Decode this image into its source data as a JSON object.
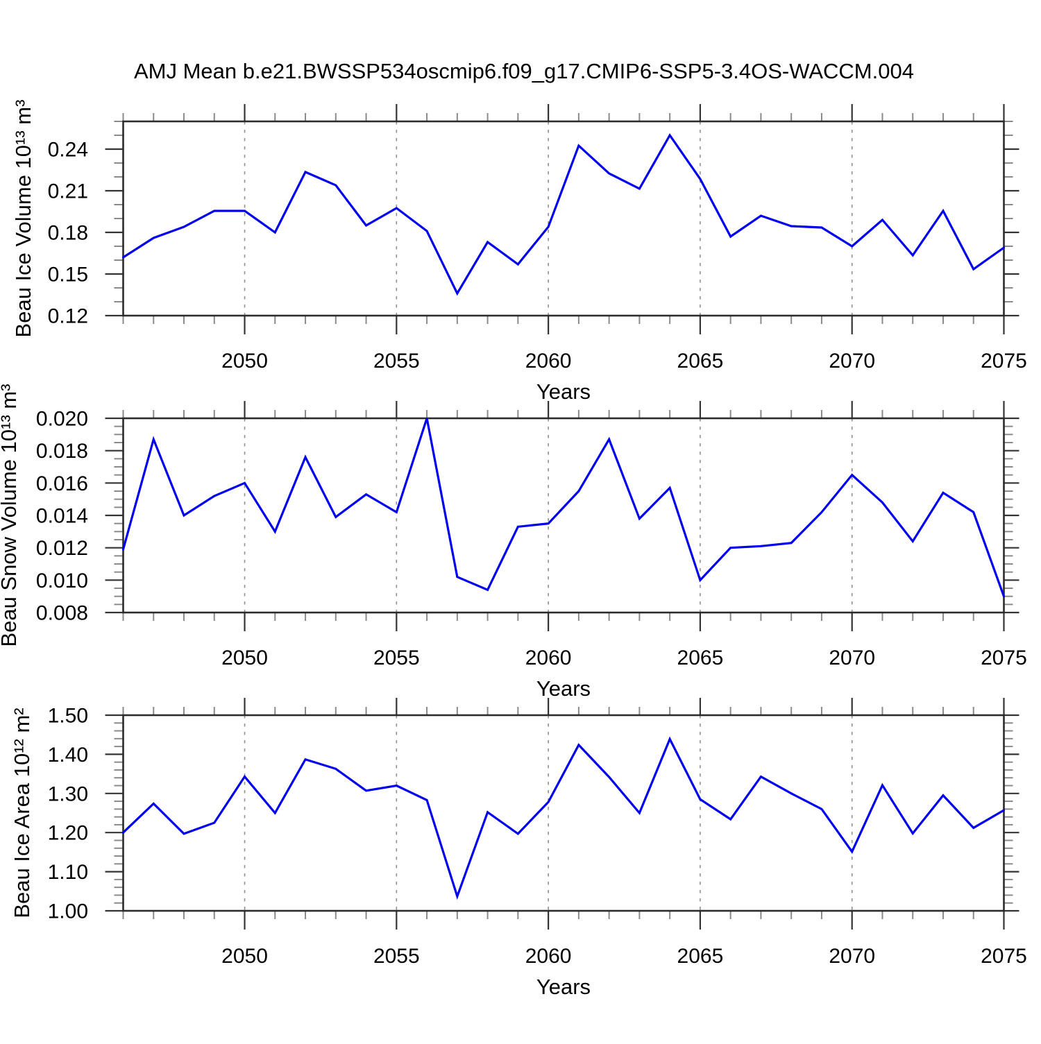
{
  "title": "AMJ Mean b.e21.BWSSP534oscmip6.f09_g17.CMIP6-SSP5-3.4OS-WACCM.004",
  "colors": {
    "line": "#0000EE",
    "grid": "#8F8F8F",
    "frame": "#2B2B2B",
    "major_tick": "#333333",
    "minor_tick": "#8A8A8A",
    "text": "#000000",
    "background": "#FFFFFF"
  },
  "x_axis": {
    "label": "Years",
    "start": 2046,
    "end": 2075,
    "minor_step": 1,
    "major_ticks": [
      2050,
      2055,
      2060,
      2065,
      2070,
      2075
    ],
    "major_tick_labels": [
      "2050",
      "2055",
      "2060",
      "2065",
      "2070",
      "2075"
    ],
    "dashed_gridlines": [
      2050,
      2055,
      2060,
      2065,
      2070
    ]
  },
  "chart_data": [
    {
      "type": "line",
      "id": "ice-volume",
      "title": "",
      "xlabel": "Years",
      "ylabel": "Beau Ice Volume 10¹³ m³",
      "legend": null,
      "grid": "vertical-dashed-only",
      "ylim": [
        0.12,
        0.26
      ],
      "ytick_values": [
        0.12,
        0.15,
        0.18,
        0.21,
        0.24
      ],
      "ytick_labels": [
        "0.12",
        "0.15",
        "0.18",
        "0.21",
        "0.24"
      ],
      "yminor_step": 0.01,
      "x": [
        2046,
        2047,
        2048,
        2049,
        2050,
        2051,
        2052,
        2053,
        2054,
        2055,
        2056,
        2057,
        2058,
        2059,
        2060,
        2061,
        2062,
        2063,
        2064,
        2065,
        2066,
        2067,
        2068,
        2069,
        2070,
        2071,
        2072,
        2073,
        2074,
        2075
      ],
      "values": [
        0.162,
        0.176,
        0.184,
        0.1955,
        0.1955,
        0.18,
        0.2235,
        0.214,
        0.185,
        0.1975,
        0.181,
        0.136,
        0.173,
        0.157,
        0.184,
        0.2425,
        0.2225,
        0.2115,
        0.25,
        0.2185,
        0.177,
        0.192,
        0.1845,
        0.1835,
        0.17,
        0.189,
        0.1635,
        0.1955,
        0.1535,
        0.169
      ]
    },
    {
      "type": "line",
      "id": "snow-volume",
      "title": "",
      "xlabel": "Years",
      "ylabel": "Beau Snow Volume 10¹³ m³",
      "legend": null,
      "grid": "vertical-dashed-only",
      "ylim": [
        0.008,
        0.02
      ],
      "ytick_values": [
        0.008,
        0.01,
        0.012,
        0.014,
        0.016,
        0.018,
        0.02
      ],
      "ytick_labels": [
        "0.008",
        "0.010",
        "0.012",
        "0.014",
        "0.016",
        "0.018",
        "0.020"
      ],
      "yminor_step": 0.0005,
      "x": [
        2046,
        2047,
        2048,
        2049,
        2050,
        2051,
        2052,
        2053,
        2054,
        2055,
        2056,
        2057,
        2058,
        2059,
        2060,
        2061,
        2062,
        2063,
        2064,
        2065,
        2066,
        2067,
        2068,
        2069,
        2070,
        2071,
        2072,
        2073,
        2074,
        2075
      ],
      "values": [
        0.0119,
        0.0187,
        0.014,
        0.0152,
        0.016,
        0.013,
        0.0176,
        0.0139,
        0.0153,
        0.0142,
        0.02,
        0.0102,
        0.0094,
        0.0133,
        0.0135,
        0.0155,
        0.0187,
        0.0138,
        0.0157,
        0.01,
        0.012,
        0.0121,
        0.0123,
        0.0142,
        0.0165,
        0.0148,
        0.0124,
        0.0154,
        0.0142,
        0.009
      ]
    },
    {
      "type": "line",
      "id": "ice-area",
      "title": "",
      "xlabel": "Years",
      "ylabel": "Beau Ice Area 10¹² m²",
      "legend": null,
      "grid": "vertical-dashed-only",
      "ylim": [
        1.0,
        1.5
      ],
      "ytick_values": [
        1.0,
        1.1,
        1.2,
        1.3,
        1.4,
        1.5
      ],
      "ytick_labels": [
        "1.00",
        "1.10",
        "1.20",
        "1.30",
        "1.40",
        "1.50"
      ],
      "yminor_step": 0.02,
      "x": [
        2046,
        2047,
        2048,
        2049,
        2050,
        2051,
        2052,
        2053,
        2054,
        2055,
        2056,
        2057,
        2058,
        2059,
        2060,
        2061,
        2062,
        2063,
        2064,
        2065,
        2066,
        2067,
        2068,
        2069,
        2070,
        2071,
        2072,
        2073,
        2074,
        2075
      ],
      "values": [
        1.2,
        1.274,
        1.197,
        1.225,
        1.343,
        1.25,
        1.387,
        1.363,
        1.307,
        1.32,
        1.283,
        1.037,
        1.252,
        1.197,
        1.278,
        1.424,
        1.342,
        1.25,
        1.439,
        1.285,
        1.234,
        1.343,
        1.3,
        1.26,
        1.151,
        1.321,
        1.198,
        1.295,
        1.212,
        1.257
      ]
    }
  ]
}
